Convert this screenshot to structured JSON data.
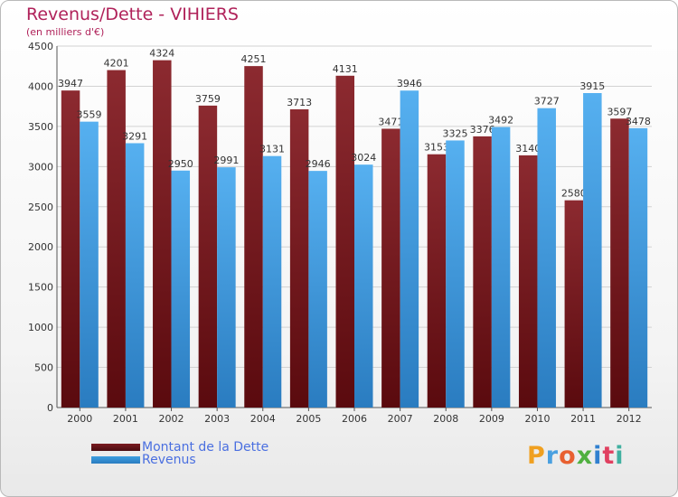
{
  "header": {
    "title": "Revenus/Dette - VIHIERS",
    "subtitle": "(en milliers d'€)"
  },
  "legend": {
    "dette_label": "Montant de la Dette",
    "revenus_label": "Revenus"
  },
  "logo": {
    "text": "Proxiti"
  },
  "colors": {
    "dette": "#7a1a20",
    "revenus": "#3d9ee0"
  },
  "chart_data": {
    "type": "bar",
    "title": "Revenus/Dette - VIHIERS",
    "subtitle": "(en milliers d'€)",
    "xlabel": "",
    "ylabel": "",
    "categories": [
      "2000",
      "2001",
      "2002",
      "2003",
      "2004",
      "2005",
      "2006",
      "2007",
      "2008",
      "2009",
      "2010",
      "2011",
      "2012"
    ],
    "series": [
      {
        "name": "Montant de la Dette",
        "values": [
          3947,
          4201,
          4324,
          3759,
          4251,
          3713,
          4131,
          3471,
          3153,
          3376,
          3140,
          2580,
          3597
        ]
      },
      {
        "name": "Revenus",
        "values": [
          3559,
          3291,
          2950,
          2991,
          3131,
          2946,
          3024,
          3946,
          3325,
          3492,
          3727,
          3915,
          3478
        ]
      }
    ],
    "ylim": [
      0,
      4500
    ],
    "yticks": [
      0,
      500,
      1000,
      1500,
      2000,
      2500,
      3000,
      3500,
      4000,
      4500
    ],
    "grid": true,
    "legend_position": "bottom-left"
  }
}
